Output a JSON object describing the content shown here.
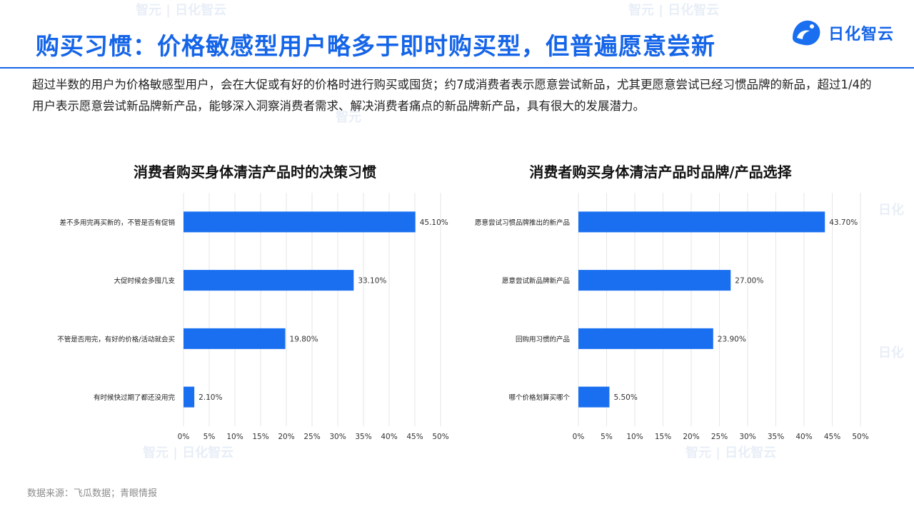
{
  "header": {
    "title": "购买习惯：价格敏感型用户略多于即时购买型，但普遍愿意尝新",
    "logo_text": "日化智云"
  },
  "intro": "超过半数的用户为价格敏感型用户，会在大促或有好的价格时进行购买或囤货；约7成消费者表示愿意尝试新品，尤其更愿意尝试已经习惯品牌的新品，超过1/4的用户表示愿意尝试新品牌新产品，能够深入洞察消费者需求、解决消费者痛点的新品牌新产品，具有很大的发展潜力。",
  "watermark": "日化智云",
  "source": "数据来源：飞瓜数据；青眼情报",
  "colors": {
    "accent": "#1565e8",
    "bar": "#1a6ff0"
  },
  "chart_data": [
    {
      "type": "bar",
      "orientation": "horizontal",
      "title": "消费者购买身体清洁产品时的决策习惯",
      "categories": [
        "差不多用完再买新的，不管是否有促销",
        "大促时候会多囤几支",
        "不管是否用完，有好的价格/活动就会买",
        "有时候快过期了都还没用完"
      ],
      "values": [
        45.1,
        33.1,
        19.8,
        2.1
      ],
      "value_labels": [
        "45.10%",
        "33.10%",
        "19.80%",
        "2.10%"
      ],
      "xlim": [
        0,
        50
      ],
      "xticks": [
        "0%",
        "5%",
        "10%",
        "15%",
        "20%",
        "25%",
        "30%",
        "35%",
        "40%",
        "45%",
        "50%"
      ],
      "grid": true
    },
    {
      "type": "bar",
      "orientation": "horizontal",
      "title": "消费者购买身体清洁产品时品牌/产品选择",
      "categories": [
        "愿意尝试习惯品牌推出的新产品",
        "愿意尝试新品牌新产品",
        "回购用习惯的产品",
        "哪个价格划算买哪个"
      ],
      "values": [
        43.7,
        27.0,
        23.9,
        5.5
      ],
      "value_labels": [
        "43.70%",
        "27.00%",
        "23.90%",
        "5.50%"
      ],
      "xlim": [
        0,
        50
      ],
      "xticks": [
        "0%",
        "5%",
        "10%",
        "15%",
        "20%",
        "25%",
        "30%",
        "35%",
        "40%",
        "45%",
        "50%"
      ],
      "grid": true
    }
  ]
}
